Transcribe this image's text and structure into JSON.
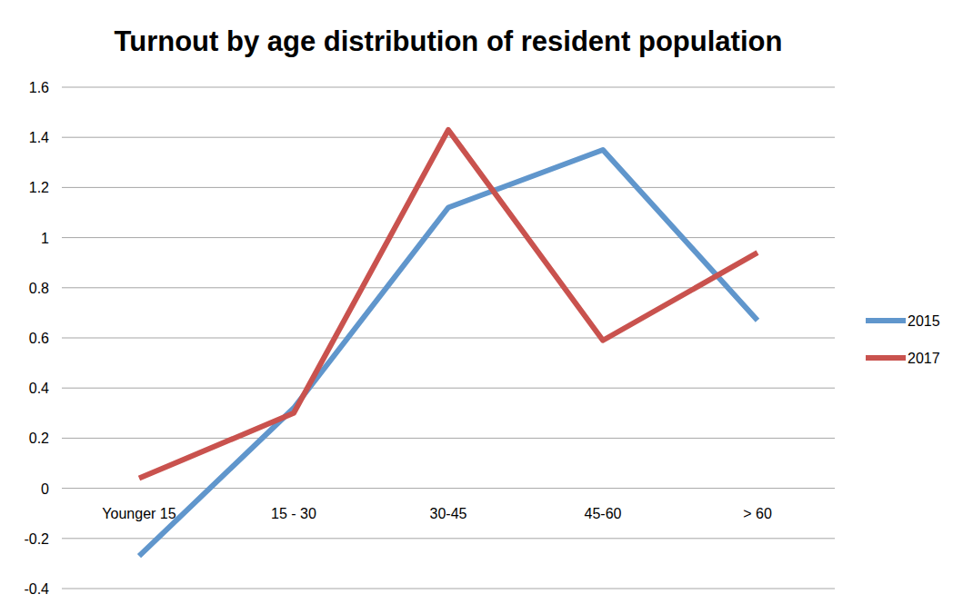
{
  "chart_data": {
    "type": "line",
    "title": "Turnout by age distribution of resident population",
    "categories": [
      "Younger 15",
      "15 - 30",
      "30-45",
      "45-60",
      "> 60"
    ],
    "series": [
      {
        "name": "2015",
        "color": "#6096cc",
        "values": [
          -0.27,
          0.32,
          1.12,
          1.35,
          0.67
        ]
      },
      {
        "name": "2017",
        "color": "#c9524e",
        "values": [
          0.04,
          0.3,
          1.43,
          0.59,
          0.94
        ]
      }
    ],
    "ylim": [
      -0.4,
      1.6
    ],
    "yticks": [
      -0.4,
      -0.2,
      0,
      0.2,
      0.4,
      0.6,
      0.8,
      1,
      1.2,
      1.4,
      1.6
    ],
    "grid": true,
    "legend": "right"
  }
}
